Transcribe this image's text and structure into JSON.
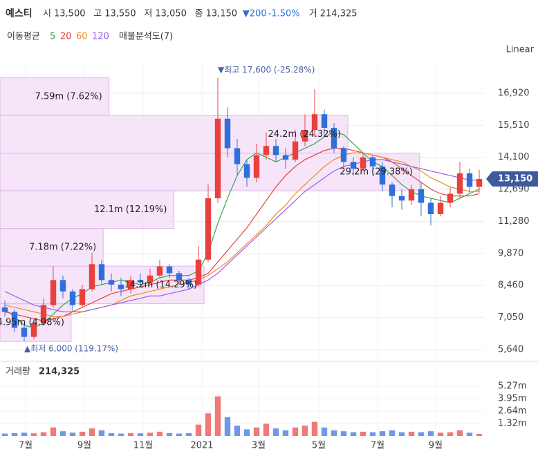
{
  "header": {
    "name": "예스티",
    "items": [
      {
        "label": "시",
        "value": "13,500"
      },
      {
        "label": "고",
        "value": "13,550"
      },
      {
        "label": "저",
        "value": "13,050"
      },
      {
        "label": "종",
        "value": "13,150"
      }
    ],
    "change": "▼200",
    "change_pct": "-1.50%",
    "volume_label": "거",
    "volume": "214,325"
  },
  "legend": {
    "label": "이동평균",
    "profile_label": "매물분석도(7)"
  },
  "chart_data": {
    "type": "candlestick",
    "scale": "Linear",
    "grid": true,
    "up_color": "#e8413d",
    "down_color": "#2f6fdb",
    "x": [
      0,
      1,
      2,
      3,
      4,
      5,
      6,
      7,
      8,
      9,
      10,
      11,
      12,
      13,
      14,
      15,
      16,
      17,
      18,
      19,
      20,
      21,
      22,
      23,
      24,
      25,
      26,
      27,
      28,
      29,
      30,
      31,
      32,
      33,
      34,
      35,
      36,
      37,
      38,
      39,
      40,
      41,
      42,
      43,
      44,
      45,
      46,
      47,
      48,
      49
    ],
    "xlim": [
      -0.5,
      49.5
    ],
    "xticks": [
      {
        "value": 2.14,
        "label": "7월"
      },
      {
        "value": 8.21,
        "label": "9월"
      },
      {
        "value": 14.29,
        "label": "11월"
      },
      {
        "value": 20.36,
        "label": "2021"
      },
      {
        "value": 26.21,
        "label": "3월"
      },
      {
        "value": 32.43,
        "label": "5월"
      },
      {
        "value": 38.5,
        "label": "7월"
      },
      {
        "value": 44.5,
        "label": "9월"
      }
    ],
    "open": [
      7500,
      7300,
      6600,
      6200,
      6800,
      7600,
      8700,
      8200,
      7600,
      8300,
      9400,
      8700,
      8500,
      8300,
      8700,
      8600,
      8900,
      9300,
      9000,
      8700,
      8500,
      9600,
      12300,
      15800,
      14500,
      13800,
      13200,
      14200,
      14600,
      14200,
      14000,
      14800,
      15300,
      16000,
      15400,
      14500,
      13900,
      13600,
      14100,
      13700,
      12900,
      12400,
      12200,
      12700,
      12100,
      11600,
      12100,
      12500,
      13400,
      12800
    ],
    "high": [
      7800,
      7400,
      6800,
      7000,
      7900,
      9300,
      8900,
      8300,
      8500,
      9900,
      9600,
      9000,
      8800,
      8900,
      9000,
      9200,
      9600,
      9400,
      9100,
      8800,
      10200,
      12900,
      17600,
      16300,
      14900,
      14000,
      14700,
      15200,
      14900,
      14500,
      15300,
      16000,
      17100,
      16200,
      15600,
      14600,
      14100,
      14300,
      14200,
      13900,
      13000,
      12700,
      12900,
      13000,
      12300,
      12400,
      12800,
      13900,
      13600,
      13550
    ],
    "low": [
      7100,
      6400,
      6000,
      6100,
      6700,
      7500,
      7900,
      7300,
      7500,
      8200,
      8500,
      8200,
      8000,
      8100,
      8400,
      8500,
      8800,
      8800,
      8500,
      8300,
      8400,
      9500,
      12100,
      14100,
      13300,
      12800,
      13000,
      14000,
      13900,
      13600,
      13900,
      14600,
      15000,
      15100,
      14300,
      13600,
      13300,
      13500,
      13300,
      12600,
      11900,
      11800,
      12000,
      11500,
      11100,
      11500,
      11900,
      12300,
      12500,
      12550
    ],
    "close": [
      7300,
      6600,
      6200,
      6800,
      7600,
      8700,
      8200,
      7600,
      8300,
      9400,
      8700,
      8500,
      8300,
      8700,
      8600,
      8900,
      9300,
      9000,
      8700,
      8500,
      9600,
      12300,
      15800,
      14500,
      13800,
      13200,
      14200,
      14600,
      14200,
      14000,
      14800,
      15300,
      16000,
      15400,
      14500,
      13900,
      13600,
      14100,
      13700,
      12900,
      12400,
      12200,
      12700,
      12100,
      11600,
      12100,
      12500,
      13400,
      12800,
      13150
    ],
    "moving_averages": [
      {
        "name": "5",
        "color": "#2fa84f",
        "values": [
          7400,
          7100,
          6700,
          6600,
          6800,
          7200,
          7600,
          7900,
          8100,
          8400,
          8500,
          8600,
          8700,
          8600,
          8500,
          8600,
          8800,
          8900,
          8900,
          8900,
          9100,
          9900,
          11200,
          12300,
          13300,
          14000,
          14300,
          14100,
          13900,
          14100,
          14300,
          14500,
          14700,
          15000,
          15200,
          15100,
          14700,
          14300,
          13900,
          13700,
          13300,
          12900,
          12600,
          12400,
          12300,
          12200,
          12100,
          12300,
          12500,
          12700
        ]
      },
      {
        "name": "20",
        "color": "#e8413d",
        "values": [
          7300,
          7200,
          7100,
          7000,
          6900,
          7000,
          7100,
          7300,
          7500,
          7700,
          7900,
          8100,
          8200,
          8300,
          8400,
          8500,
          8600,
          8700,
          8700,
          8700,
          8800,
          9000,
          9500,
          10000,
          10500,
          11000,
          11600,
          12200,
          12800,
          13300,
          13700,
          14000,
          14200,
          14400,
          14500,
          14500,
          14400,
          14300,
          14200,
          14100,
          13900,
          13600,
          13300,
          13000,
          12700,
          12500,
          12400,
          12400,
          12400,
          12500
        ]
      },
      {
        "name": "60",
        "color": "#f08a24",
        "values": [
          7600,
          7500,
          7400,
          7300,
          7200,
          7100,
          7100,
          7200,
          7300,
          7400,
          7500,
          7600,
          7800,
          8000,
          8100,
          8200,
          8300,
          8400,
          8500,
          8600,
          8700,
          8900,
          9200,
          9500,
          9900,
          10300,
          10700,
          11100,
          11600,
          12000,
          12500,
          12900,
          13300,
          13700,
          14000,
          14200,
          14300,
          14300,
          14200,
          14100,
          14000,
          13900,
          13700,
          13500,
          13200,
          13000,
          12800,
          12700,
          12600,
          12600
        ]
      },
      {
        "name": "120",
        "color": "#9b5de5",
        "values": [
          8200,
          8000,
          7800,
          7600,
          7500,
          7400,
          7300,
          7300,
          7300,
          7400,
          7500,
          7600,
          7700,
          7800,
          7900,
          8000,
          8000,
          8100,
          8200,
          8300,
          8500,
          8700,
          9000,
          9400,
          9800,
          10200,
          10600,
          11000,
          11400,
          11800,
          12200,
          12600,
          12900,
          13200,
          13500,
          13700,
          13800,
          13900,
          14000,
          14000,
          13900,
          13800,
          13700,
          13600,
          13500,
          13400,
          13300,
          13200,
          13100,
          13100
        ]
      }
    ],
    "ylim": [
      5214,
      18288
    ],
    "yticks": [
      {
        "value": 5640,
        "label": "5,640"
      },
      {
        "value": 7050,
        "label": "7,050"
      },
      {
        "value": 8460,
        "label": "8,460"
      },
      {
        "value": 9870,
        "label": "9,870"
      },
      {
        "value": 11280,
        "label": "11,280"
      },
      {
        "value": 12690,
        "label": "12,690"
      },
      {
        "value": 14100,
        "label": "14,100"
      },
      {
        "value": 15510,
        "label": "15,510"
      },
      {
        "value": 16920,
        "label": "16,920"
      }
    ],
    "last_price": {
      "value": 13150,
      "label": "13,150"
    },
    "annotations": [
      {
        "x": 22,
        "value": 17600,
        "label": "▼최고 17,600 (-25.28%)"
      },
      {
        "x": 2,
        "value": 6000,
        "label": "▲최저 6,000 (119.17%)"
      }
    ],
    "profile": {
      "bins": [
        6000,
        7657,
        9314,
        10971,
        12629,
        14286,
        15943,
        17600
      ],
      "values": [
        4950000,
        14200000,
        7180000,
        12100000,
        29200000,
        24200000,
        7590000
      ],
      "value_labels": [
        "4.95m (4.98%)",
        "14.2m (14.29%)",
        "7.18m (7.22%)",
        "12.1m (12.19%)",
        "29.2m (29.38%)",
        "24.2m (24.32%)",
        "7.59m (7.62%)"
      ],
      "color": "#f3dcf7"
    },
    "volume": {
      "label": "거래량",
      "value_label": "214,325",
      "ylim": [
        0,
        6300000
      ],
      "yticks": [
        {
          "value": 1320000,
          "label": "1.32m"
        },
        {
          "value": 2640000,
          "label": "2.64m"
        },
        {
          "value": 3950000,
          "label": "3.95m"
        },
        {
          "value": 5270000,
          "label": "5.27m"
        }
      ],
      "values": [
        250000,
        300000,
        350000,
        280000,
        400000,
        900000,
        500000,
        350000,
        450000,
        800000,
        600000,
        300000,
        250000,
        300000,
        280000,
        350000,
        450000,
        300000,
        250000,
        300000,
        1200000,
        2400000,
        4200000,
        2000000,
        1100000,
        700000,
        900000,
        1300000,
        800000,
        600000,
        900000,
        1100000,
        1500000,
        900000,
        600000,
        500000,
        400000,
        450000,
        400000,
        500000,
        600000,
        400000,
        450000,
        400000,
        500000,
        350000,
        400000,
        600000,
        350000,
        214325
      ]
    }
  }
}
